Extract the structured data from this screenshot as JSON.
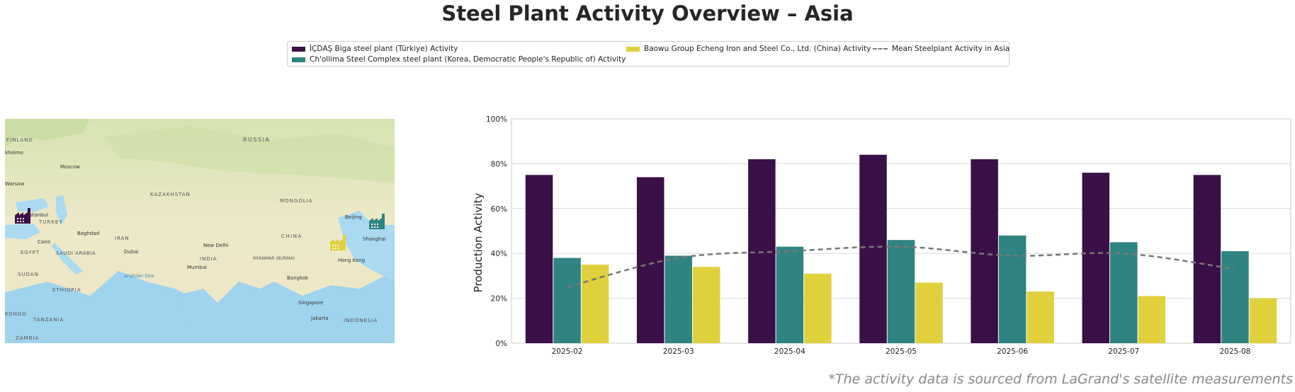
{
  "title": "Steel Plant Activity Overview – Asia",
  "legend": {
    "items": [
      {
        "label": "İÇDAŞ Biga steel plant (Türkiye) Activity",
        "color": "#3b0f48"
      },
      {
        "label": "Ch'ollima Steel Complex steel plant (Korea, Democratic People's Republic of) Activity",
        "color": "#2e8480"
      },
      {
        "label": "Baowu Group Echeng Iron and Steel Co., Ltd. (China) Activity",
        "color": "#e0d13c"
      },
      {
        "label": "Mean Steelplant Activity in Asia",
        "color": "#777777"
      }
    ]
  },
  "map": {
    "labels": [
      "RUSSIA",
      "FINLAND",
      "khoimo",
      "Moscow",
      "Warsaw",
      "KAZAKHSTAN",
      "MONGOLIA",
      "Beijing",
      "Istanbul",
      "TURKEY",
      "Baghdad",
      "IRAN",
      "CHINA",
      "Shanghai",
      "Cairo",
      "EGYPT",
      "SAUDI ARABIA",
      "Dubai",
      "New Delhi",
      "INDIA",
      "MYANMAR (BURMA)",
      "Hong Kong",
      "SUDAN",
      "Mumbai",
      "Arabian Sea",
      "Bangkok",
      "ETHIOPIA",
      "Singapore",
      "Jakarta",
      "INDONESIA",
      "TANZANIA",
      "ZAMBIA",
      "KONGO"
    ],
    "markers": [
      {
        "plant": "İÇDAŞ Biga steel plant",
        "color": "#3b0f48",
        "icon": "factory-icon"
      },
      {
        "plant": "Ch'ollima Steel Complex",
        "color": "#2e8480",
        "icon": "factory-icon"
      },
      {
        "plant": "Baowu Group Echeng",
        "color": "#e0d13c",
        "icon": "factory-icon"
      }
    ]
  },
  "chart_data": {
    "type": "bar",
    "title": "",
    "xlabel": "",
    "ylabel": "Production Activity",
    "ylim": [
      0,
      100
    ],
    "yticks": [
      "0%",
      "20%",
      "40%",
      "60%",
      "80%",
      "100%"
    ],
    "grid": true,
    "categories": [
      "2025-02",
      "2025-03",
      "2025-04",
      "2025-05",
      "2025-06",
      "2025-07",
      "2025-08"
    ],
    "series": [
      {
        "name": "İÇDAŞ Biga steel plant (Türkiye) Activity",
        "color": "#3b0f48",
        "values": [
          75,
          74,
          82,
          84,
          82,
          76,
          75
        ]
      },
      {
        "name": "Ch'ollima Steel Complex steel plant (Korea, Democratic People's Republic of) Activity",
        "color": "#2e8480",
        "values": [
          38,
          39,
          43,
          46,
          48,
          45,
          41
        ]
      },
      {
        "name": "Baowu Group Echeng Iron and Steel Co., Ltd. (China) Activity",
        "color": "#e0d13c",
        "values": [
          35,
          34,
          31,
          27,
          23,
          21,
          20
        ]
      }
    ],
    "line": {
      "name": "Mean Steelplant Activity in Asia",
      "color": "#777777",
      "values": [
        25,
        38,
        41,
        43,
        39,
        40,
        33
      ]
    }
  },
  "footnote": "*The activity data is sourced from LaGrand's satellite measurements"
}
